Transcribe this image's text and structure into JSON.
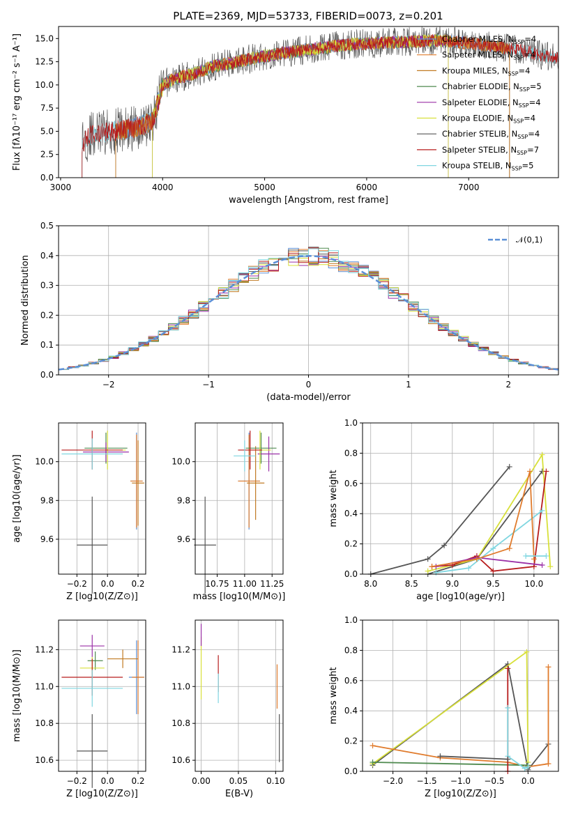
{
  "title": "PLATE=2369, MJD=53733, FIBERID=0073, z=0.201",
  "colors": {
    "Chabrier MILES": "#5b8fd6",
    "Salpeter MILES": "#e07b2c",
    "Kroupa MILES": "#c17a22",
    "Chabrier ELODIE": "#4f8a4f",
    "Salpeter ELODIE": "#9a2fa6",
    "Kroupa ELODIE": "#d8e03a",
    "Chabrier STELIB": "#555555",
    "Salpeter STELIB": "#b71c1c",
    "Kroupa STELIB": "#7fd6e0",
    "gauss": "#5b8fd6"
  },
  "chart_data": [
    {
      "type": "line",
      "panel": "spectrum",
      "title": "PLATE=2369, MJD=53733, FIBERID=0073, z=0.201",
      "xlabel": "wavelength [Angstrom, rest frame]",
      "ylabel": "Flux [fλ10⁻¹⁷ erg cm⁻² s⁻¹ A⁻¹]",
      "xlim": [
        2980,
        7880
      ],
      "ylim": [
        0,
        16.3
      ],
      "xticks": [
        "3000",
        "4000",
        "5000",
        "6000",
        "7000"
      ],
      "yticks": [
        "0.0",
        "2.5",
        "5.0",
        "7.5",
        "10.0",
        "12.5",
        "15.0"
      ],
      "legend_position": "right",
      "grid": false,
      "continuum_x": [
        3210,
        3300,
        3500,
        3700,
        3900,
        4000,
        4100,
        4300,
        4500,
        4700,
        4900,
        5100,
        5300,
        5500,
        5700,
        5900,
        6100,
        6300,
        6500,
        6700,
        6900,
        7100,
        7300,
        7500,
        7700,
        7880
      ],
      "continuum_y": [
        3.8,
        4.6,
        5.0,
        5.3,
        6.0,
        10.0,
        10.6,
        11.2,
        12.0,
        12.4,
        12.9,
        13.3,
        13.6,
        13.9,
        14.2,
        14.4,
        14.5,
        14.6,
        14.7,
        14.8,
        14.6,
        14.4,
        14.1,
        13.8,
        13.2,
        12.9
      ],
      "series": [
        {
          "name": "Chabrier MILES, N$_{SSP}$=4",
          "label": "Chabrier MILES, N",
          "n": "=4",
          "start": 3540,
          "end": 7400
        },
        {
          "name": "Salpeter MILES, N$_{SSP}$=4",
          "label": "Salpeter MILES, N",
          "n": "=4",
          "start": 3540,
          "end": 7400
        },
        {
          "name": "Kroupa MILES, N$_{SSP}$=4",
          "label": "Kroupa MILES, N",
          "n": "=4",
          "start": 3540,
          "end": 7400
        },
        {
          "name": "Chabrier ELODIE, N$_{SSP}$=5",
          "label": "Chabrier ELODIE, N",
          "n": "=5",
          "start": 3900,
          "end": 6800
        },
        {
          "name": "Salpeter ELODIE, N$_{SSP}$=4",
          "label": "Salpeter ELODIE, N",
          "n": "=4",
          "start": 3900,
          "end": 6800
        },
        {
          "name": "Kroupa ELODIE, N$_{SSP}$=4",
          "label": "Kroupa ELODIE, N",
          "n": "=4",
          "start": 3900,
          "end": 6800
        },
        {
          "name": "Chabrier STELIB, N$_{SSP}$=4",
          "label": "Chabrier STELIB, N",
          "n": "=4",
          "start": 3210,
          "end": 7880
        },
        {
          "name": "Salpeter STELIB, N$_{SSP}$=7",
          "label": "Salpeter STELIB, N",
          "n": "=7",
          "start": 3210,
          "end": 7880
        },
        {
          "name": "Kroupa STELIB, N$_{SSP}$=5",
          "label": "Kroupa STELIB, N",
          "n": "=5",
          "start": 3210,
          "end": 7880
        }
      ]
    },
    {
      "type": "histogram",
      "panel": "residuals",
      "xlabel": "(data-model)/error",
      "ylabel": "Normed distribution",
      "xlim": [
        -2.5,
        2.5
      ],
      "ylim": [
        0,
        0.5
      ],
      "xticks": [
        "−2",
        "−1",
        "0",
        "1",
        "2"
      ],
      "yticks": [
        "0.0",
        "0.1",
        "0.2",
        "0.3",
        "0.4",
        "0.5"
      ],
      "grid": true,
      "legend": "𝒩(0,1)",
      "bin_width": 0.1,
      "gaussian": {
        "mu": 0,
        "sigma": 1
      }
    },
    {
      "type": "scatter",
      "panel": "age_vs_Z",
      "xlabel": "Z [log10(Z/Z⊙)]",
      "ylabel": "age  [log10(age/yr)]",
      "xlim": [
        -0.32,
        0.25
      ],
      "ylim": [
        9.42,
        10.2
      ],
      "xticks": [
        "−0.2",
        "0.0",
        "0.2"
      ],
      "yticks": [
        "9.6",
        "9.8",
        "10.0"
      ],
      "grid": true,
      "errorbars": [
        {
          "x": -0.1,
          "y": 9.57,
          "xerr": 0.1,
          "yerr": 0.25,
          "c": "Chabrier STELIB"
        },
        {
          "x": 0.19,
          "y": 9.9,
          "xerr": 0.04,
          "yerr": 0.25,
          "c": "Chabrier MILES"
        },
        {
          "x": 0.19,
          "y": 9.9,
          "xerr": 0.04,
          "yerr": 0.24,
          "c": "Salpeter MILES"
        },
        {
          "x": 0.2,
          "y": 9.89,
          "xerr": 0.04,
          "yerr": 0.22,
          "c": "Kroupa MILES"
        },
        {
          "x": -0.01,
          "y": 10.07,
          "xerr": 0.14,
          "yerr": 0.08,
          "c": "Chabrier ELODIE"
        },
        {
          "x": -0.01,
          "y": 10.05,
          "xerr": 0.15,
          "yerr": 0.05,
          "c": "Salpeter ELODIE"
        },
        {
          "x": 0.0,
          "y": 10.06,
          "xerr": 0.12,
          "yerr": 0.1,
          "c": "Kroupa ELODIE"
        },
        {
          "x": -0.1,
          "y": 10.06,
          "xerr": 0.2,
          "yerr": 0.1,
          "c": "Salpeter STELIB"
        },
        {
          "x": -0.1,
          "y": 10.04,
          "xerr": 0.2,
          "yerr": 0.08,
          "c": "Kroupa STELIB"
        }
      ]
    },
    {
      "type": "scatter",
      "panel": "age_vs_mass",
      "xlabel": "mass [log10(M/M⊙)]",
      "ylabel": "",
      "xlim": [
        10.55,
        11.35
      ],
      "ylim": [
        9.42,
        10.2
      ],
      "xticks": [
        "10.75",
        "11.00",
        "11.25"
      ],
      "yticks": [
        "9.6",
        "9.8",
        "10.0"
      ],
      "grid": true,
      "errorbars": [
        {
          "x": 10.64,
          "y": 9.57,
          "xerr": 0.1,
          "yerr": 0.25,
          "c": "Chabrier STELIB"
        },
        {
          "x": 11.04,
          "y": 9.9,
          "xerr": 0.1,
          "yerr": 0.25,
          "c": "Chabrier MILES"
        },
        {
          "x": 11.04,
          "y": 9.9,
          "xerr": 0.1,
          "yerr": 0.24,
          "c": "Salpeter MILES"
        },
        {
          "x": 11.1,
          "y": 9.89,
          "xerr": 0.08,
          "yerr": 0.19,
          "c": "Kroupa MILES"
        },
        {
          "x": 11.15,
          "y": 10.07,
          "xerr": 0.14,
          "yerr": 0.08,
          "c": "Chabrier ELODIE"
        },
        {
          "x": 11.22,
          "y": 10.04,
          "xerr": 0.1,
          "yerr": 0.09,
          "c": "Salpeter ELODIE"
        },
        {
          "x": 11.14,
          "y": 10.06,
          "xerr": 0.1,
          "yerr": 0.1,
          "c": "Kroupa ELODIE"
        },
        {
          "x": 11.05,
          "y": 10.06,
          "xerr": 0.11,
          "yerr": 0.1,
          "c": "Salpeter STELIB"
        },
        {
          "x": 11.0,
          "y": 10.03,
          "xerr": 0.1,
          "yerr": 0.08,
          "c": "Kroupa STELIB"
        }
      ]
    },
    {
      "type": "line",
      "panel": "massweight_vs_age",
      "xlabel": "age  [log10(age/yr)]",
      "ylabel": "mass weight",
      "xlim": [
        7.9,
        10.3
      ],
      "ylim": [
        0,
        1.0
      ],
      "xticks": [
        "8.0",
        "8.5",
        "9.0",
        "9.5",
        "10.0"
      ],
      "yticks": [
        "0.0",
        "0.2",
        "0.4",
        "0.6",
        "0.8",
        "1.0"
      ],
      "grid": true,
      "series": [
        {
          "c": "Chabrier STELIB",
          "x": [
            8.0,
            8.7,
            8.9,
            9.7
          ],
          "y": [
            0.0,
            0.1,
            0.19,
            0.71
          ]
        },
        {
          "c": "Chabrier STELIB",
          "x": [
            8.7,
            9.3,
            10.1
          ],
          "y": [
            0.0,
            0.1,
            0.68
          ]
        },
        {
          "c": "Kroupa ELODIE",
          "x": [
            8.7,
            9.3,
            10.1,
            10.2
          ],
          "y": [
            0.02,
            0.1,
            0.79,
            0.05
          ]
        },
        {
          "c": "Salpeter STELIB",
          "x": [
            8.75,
            9.0,
            9.3,
            9.5,
            10.0,
            10.15
          ],
          "y": [
            0.05,
            0.06,
            0.12,
            0.02,
            0.05,
            0.68
          ]
        },
        {
          "c": "Salpeter ELODIE",
          "x": [
            8.8,
            9.3,
            10.1
          ],
          "y": [
            0.05,
            0.11,
            0.06
          ]
        },
        {
          "c": "Kroupa STELIB",
          "x": [
            8.8,
            9.2,
            9.5,
            10.1
          ],
          "y": [
            0.01,
            0.04,
            0.17,
            0.42
          ]
        },
        {
          "c": "Salpeter MILES",
          "x": [
            8.75,
            9.3,
            9.7,
            9.95,
            10.0
          ],
          "y": [
            0.05,
            0.1,
            0.17,
            0.68,
            0.1
          ]
        },
        {
          "c": "Kroupa STELIB",
          "x": [
            9.9,
            10.15
          ],
          "y": [
            0.12,
            0.12
          ]
        }
      ]
    },
    {
      "type": "scatter",
      "panel": "mass_vs_Z",
      "xlabel": "Z [log10(Z/Z⊙)]",
      "ylabel": "mass [log10(M/M⊙)]",
      "xlim": [
        -0.32,
        0.25
      ],
      "ylim": [
        10.54,
        11.36
      ],
      "xticks": [
        "−0.2",
        "0.0",
        "0.2"
      ],
      "yticks": [
        "10.6",
        "10.8",
        "11.0",
        "11.2"
      ],
      "grid": true,
      "errorbars": [
        {
          "x": -0.1,
          "y": 10.65,
          "xerr": 0.1,
          "yerr": 0.2,
          "c": "Chabrier STELIB"
        },
        {
          "x": 0.19,
          "y": 11.05,
          "xerr": 0.05,
          "yerr": 0.2,
          "c": "Chabrier MILES"
        },
        {
          "x": 0.2,
          "y": 11.05,
          "xerr": 0.04,
          "yerr": 0.2,
          "c": "Salpeter MILES"
        },
        {
          "x": 0.1,
          "y": 11.15,
          "xerr": 0.1,
          "yerr": 0.05,
          "c": "Kroupa MILES"
        },
        {
          "x": -0.08,
          "y": 11.14,
          "xerr": 0.05,
          "yerr": 0.05,
          "c": "Chabrier ELODIE"
        },
        {
          "x": -0.1,
          "y": 11.22,
          "xerr": 0.08,
          "yerr": 0.06,
          "c": "Salpeter ELODIE"
        },
        {
          "x": -0.1,
          "y": 11.1,
          "xerr": 0.08,
          "yerr": 0.06,
          "c": "Kroupa ELODIE"
        },
        {
          "x": -0.1,
          "y": 11.05,
          "xerr": 0.2,
          "yerr": 0.1,
          "c": "Salpeter STELIB"
        },
        {
          "x": -0.1,
          "y": 10.99,
          "xerr": 0.2,
          "yerr": 0.1,
          "c": "Kroupa STELIB"
        }
      ]
    },
    {
      "type": "scatter",
      "panel": "mass_vs_ebv",
      "xlabel": "E(B-V)",
      "ylabel": "",
      "xlim": [
        -0.008,
        0.11
      ],
      "ylim": [
        10.54,
        11.36
      ],
      "xticks": [
        "0.00",
        "0.05",
        "0.10"
      ],
      "yticks": [
        "10.6",
        "10.8",
        "11.0",
        "11.2"
      ],
      "grid": true,
      "errorbars": [
        {
          "x": 0.105,
          "y": 10.72,
          "xerr": 0,
          "yerr": 0.13,
          "c": "Chabrier STELIB"
        },
        {
          "x": 0.102,
          "y": 11.0,
          "xerr": 0,
          "yerr": 0.12,
          "c": "Salpeter MILES"
        },
        {
          "x": 0.0,
          "y": 11.1,
          "xerr": 0,
          "yerr": 0.17,
          "c": "Kroupa ELODIE"
        },
        {
          "x": 0.0,
          "y": 11.28,
          "xerr": 0,
          "yerr": 0.06,
          "c": "Salpeter ELODIE"
        },
        {
          "x": 0.023,
          "y": 11.07,
          "xerr": 0,
          "yerr": 0.1,
          "c": "Salpeter STELIB"
        },
        {
          "x": 0.023,
          "y": 10.99,
          "xerr": 0,
          "yerr": 0.08,
          "c": "Kroupa STELIB"
        }
      ]
    },
    {
      "type": "line",
      "panel": "massweight_vs_Z",
      "xlabel": "Z [log10(Z/Z⊙)]",
      "ylabel": "mass weight",
      "xlim": [
        -2.45,
        0.45
      ],
      "ylim": [
        0,
        1.0
      ],
      "xticks": [
        "−2.0",
        "−1.5",
        "−1.0",
        "−0.5",
        "0.0"
      ],
      "yticks": [
        "0.0",
        "0.2",
        "0.4",
        "0.6",
        "0.8",
        "1.0"
      ],
      "grid": true,
      "series": [
        {
          "c": "Chabrier STELIB",
          "x": [
            -2.3,
            -0.3,
            0.0,
            0.3
          ],
          "y": [
            0.04,
            0.71,
            0.01,
            0.18
          ]
        },
        {
          "c": "Kroupa ELODIE",
          "x": [
            -2.3,
            -0.02,
            0.0
          ],
          "y": [
            0.05,
            0.79,
            0.06
          ]
        },
        {
          "c": "Salpeter MILES",
          "x": [
            -2.3,
            -1.3,
            -0.3,
            0.0,
            0.3,
            0.3
          ],
          "y": [
            0.17,
            0.09,
            0.06,
            0.03,
            0.05,
            0.69
          ]
        },
        {
          "c": "Chabrier ELODIE",
          "x": [
            -2.3,
            0.0
          ],
          "y": [
            0.06,
            0.04
          ]
        },
        {
          "c": "Salpeter STELIB",
          "x": [
            -0.3,
            -0.3
          ],
          "y": [
            0.0,
            0.68
          ]
        },
        {
          "c": "Kroupa STELIB",
          "x": [
            -0.3,
            -0.3,
            -0.05,
            0.0
          ],
          "y": [
            0.42,
            0.1,
            0.02,
            0.03
          ]
        },
        {
          "c": "Chabrier STELIB",
          "x": [
            -1.3,
            -0.3
          ],
          "y": [
            0.1,
            0.08
          ]
        }
      ]
    }
  ]
}
